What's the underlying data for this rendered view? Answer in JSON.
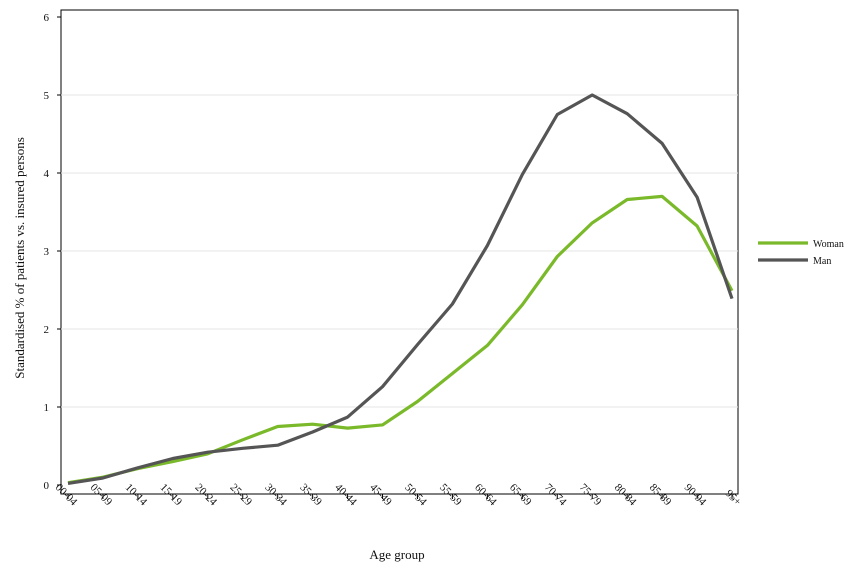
{
  "chart_data": {
    "type": "line",
    "title": "",
    "xlabel": "Age group",
    "ylabel": "Standardised % of patients vs. insured persons",
    "categories": [
      "00-04",
      "05-09",
      "10-14",
      "15-19",
      "20-24",
      "25-29",
      "30-34",
      "35-39",
      "40-44",
      "45-49",
      "50-54",
      "55-59",
      "60-64",
      "65-69",
      "70-74",
      "75-79",
      "80-84",
      "85-89",
      "90-94",
      "95+"
    ],
    "ylim": [
      0,
      6
    ],
    "yticks": [
      "0",
      "1",
      "2",
      "3",
      "4",
      "5",
      "6"
    ],
    "grid": "horizontal",
    "legend_position": "right",
    "series": [
      {
        "name": "Woman",
        "color": "#7ab929",
        "values": [
          0.03,
          0.1,
          0.21,
          0.3,
          0.4,
          0.58,
          0.75,
          0.78,
          0.73,
          0.77,
          1.07,
          1.43,
          1.79,
          2.31,
          2.93,
          3.36,
          3.66,
          3.7,
          3.32,
          2.49
        ]
      },
      {
        "name": "Man",
        "color": "#555555",
        "values": [
          0.02,
          0.09,
          0.22,
          0.34,
          0.42,
          0.47,
          0.51,
          0.68,
          0.87,
          1.26,
          1.8,
          2.32,
          3.07,
          3.98,
          4.75,
          5.0,
          4.76,
          4.38,
          3.69,
          2.39
        ]
      }
    ]
  }
}
